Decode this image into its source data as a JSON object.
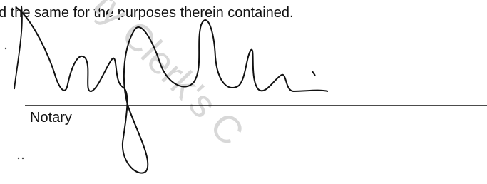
{
  "document": {
    "text": "d the same for the purposes therein contained.",
    "signature_label": "Notary",
    "watermark": "ty Clerk's C"
  }
}
